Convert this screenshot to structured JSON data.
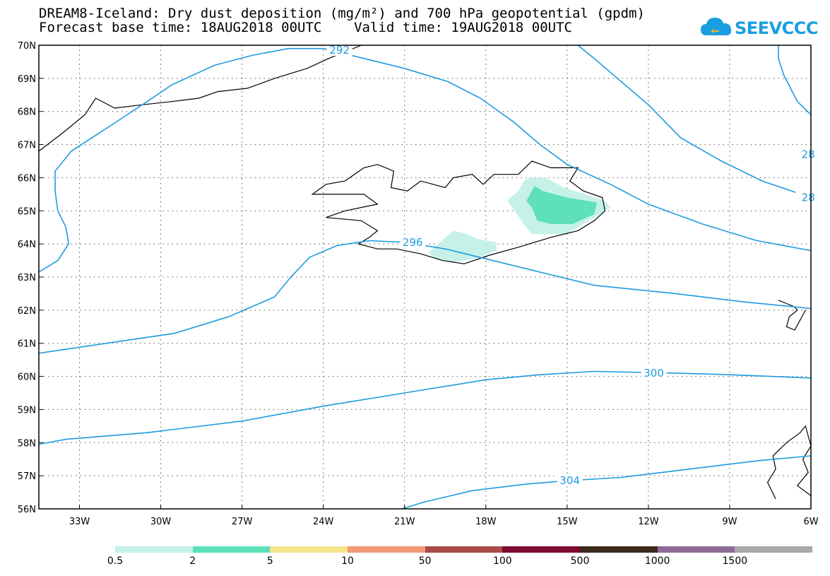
{
  "title_line1": "DREAM8-Iceland: Dry dust deposition (mg/m²) and 700 hPa geopotential (gpdm)",
  "title_line2": "Forecast base time: 18AUG2018 00UTC    Valid time: 19AUG2018 00UTC",
  "logo_text": "SEEVCCC",
  "lat_labels": [
    "70N",
    "69N",
    "68N",
    "67N",
    "66N",
    "65N",
    "64N",
    "63N",
    "62N",
    "61N",
    "60N",
    "59N",
    "58N",
    "57N",
    "56N"
  ],
  "lon_labels": [
    "33W",
    "30W",
    "27W",
    "24W",
    "21W",
    "18W",
    "15W",
    "12W",
    "9W",
    "6W"
  ],
  "contour_labels": [
    {
      "text": "292",
      "lon": -23.4,
      "lat": 69.85
    },
    {
      "text": "296",
      "lon": -20.7,
      "lat": 64.05
    },
    {
      "text": "300",
      "lon": -11.8,
      "lat": 60.1
    },
    {
      "text": "304",
      "lon": -14.9,
      "lat": 56.85
    },
    {
      "text": "28",
      "lon": -6.1,
      "lat": 66.7
    },
    {
      "text": "28",
      "lon": -6.1,
      "lat": 65.4
    }
  ],
  "legend": {
    "labels": [
      "0.5",
      "2",
      "5",
      "10",
      "50",
      "100",
      "500",
      "1000",
      "1500"
    ],
    "colors": [
      "#c5f1e9",
      "#5ee0b8",
      "#f6e48a",
      "#f09a77",
      "#a84b46",
      "#7e0a2e",
      "#3b2a1a",
      "#8e6b96",
      "#a9a9a9"
    ]
  },
  "colors": {
    "contour": "#1e9be0",
    "dust_low": "#c5f1e9",
    "dust_mid": "#5ee0b8",
    "coast": "#000000"
  }
}
